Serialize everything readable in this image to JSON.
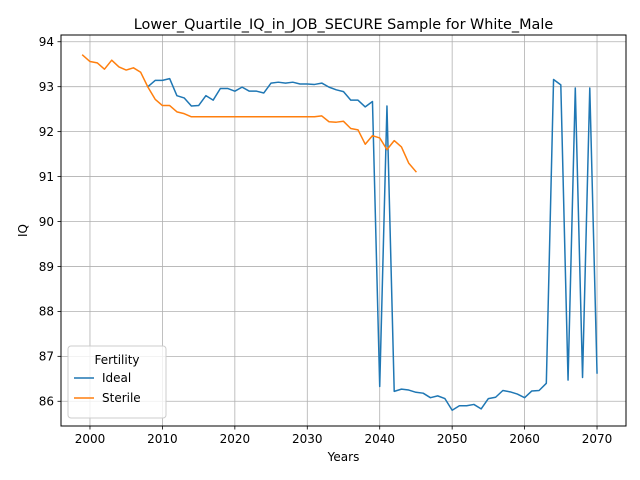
{
  "chart_data": {
    "type": "line",
    "title": "Lower_Quartile_IQ_in_JOB_SECURE Sample for White_Male",
    "xlabel": "Years",
    "ylabel": "IQ",
    "xlim": [
      1996,
      2074
    ],
    "ylim": [
      85.45,
      94.15
    ],
    "xticks": [
      2000,
      2010,
      2020,
      2030,
      2040,
      2050,
      2060,
      2070
    ],
    "yticks": [
      86,
      87,
      88,
      89,
      90,
      91,
      92,
      93,
      94
    ],
    "grid": true,
    "legend": {
      "title": "Fertility",
      "placement": "lower-left"
    },
    "series": [
      {
        "name": "Ideal",
        "color": "#1f77b4",
        "x": [
          2008,
          2009,
          2010,
          2011,
          2012,
          2013,
          2014,
          2015,
          2016,
          2017,
          2018,
          2019,
          2020,
          2021,
          2022,
          2023,
          2024,
          2025,
          2026,
          2027,
          2028,
          2029,
          2030,
          2031,
          2032,
          2033,
          2034,
          2035,
          2036,
          2037,
          2038,
          2039,
          2040,
          2041,
          2042,
          2043,
          2044,
          2045,
          2046,
          2047,
          2048,
          2049,
          2050,
          2051,
          2052,
          2053,
          2054,
          2055,
          2056,
          2057,
          2058,
          2059,
          2060,
          2061,
          2062,
          2063,
          2064,
          2065,
          2066,
          2067,
          2068,
          2069,
          2070
        ],
        "values": [
          93.0,
          93.14,
          93.14,
          93.18,
          92.8,
          92.75,
          92.57,
          92.58,
          92.8,
          92.7,
          92.96,
          92.96,
          92.9,
          92.99,
          92.9,
          92.9,
          92.86,
          93.08,
          93.1,
          93.08,
          93.1,
          93.06,
          93.06,
          93.05,
          93.08,
          92.99,
          92.93,
          92.89,
          92.7,
          92.7,
          92.55,
          92.67,
          86.33,
          92.57,
          86.22,
          86.27,
          86.25,
          86.2,
          86.18,
          86.08,
          86.12,
          86.06,
          85.8,
          85.9,
          85.9,
          85.93,
          85.83,
          86.06,
          86.09,
          86.24,
          86.21,
          86.16,
          86.08,
          86.23,
          86.24,
          86.4,
          93.16,
          93.04,
          86.47,
          92.97,
          86.53,
          92.97,
          86.63
        ]
      },
      {
        "name": "Sterile",
        "color": "#ff7f0e",
        "x": [
          1999,
          2000,
          2001,
          2002,
          2003,
          2004,
          2005,
          2006,
          2007,
          2008,
          2009,
          2010,
          2011,
          2012,
          2013,
          2014,
          2015,
          2016,
          2017,
          2018,
          2019,
          2020,
          2021,
          2022,
          2023,
          2024,
          2025,
          2026,
          2027,
          2028,
          2029,
          2030,
          2031,
          2032,
          2033,
          2034,
          2035,
          2036,
          2037,
          2038,
          2039,
          2040,
          2041,
          2042,
          2043,
          2044,
          2045
        ],
        "values": [
          93.7,
          93.56,
          93.53,
          93.39,
          93.59,
          93.44,
          93.37,
          93.42,
          93.32,
          92.99,
          92.72,
          92.58,
          92.58,
          92.44,
          92.4,
          92.33,
          92.33,
          92.33,
          92.33,
          92.33,
          92.33,
          92.33,
          92.33,
          92.33,
          92.33,
          92.33,
          92.33,
          92.33,
          92.33,
          92.33,
          92.33,
          92.33,
          92.33,
          92.35,
          92.22,
          92.21,
          92.23,
          92.07,
          92.04,
          91.72,
          91.91,
          91.86,
          91.6,
          91.8,
          91.66,
          91.3,
          91.11
        ]
      }
    ]
  }
}
